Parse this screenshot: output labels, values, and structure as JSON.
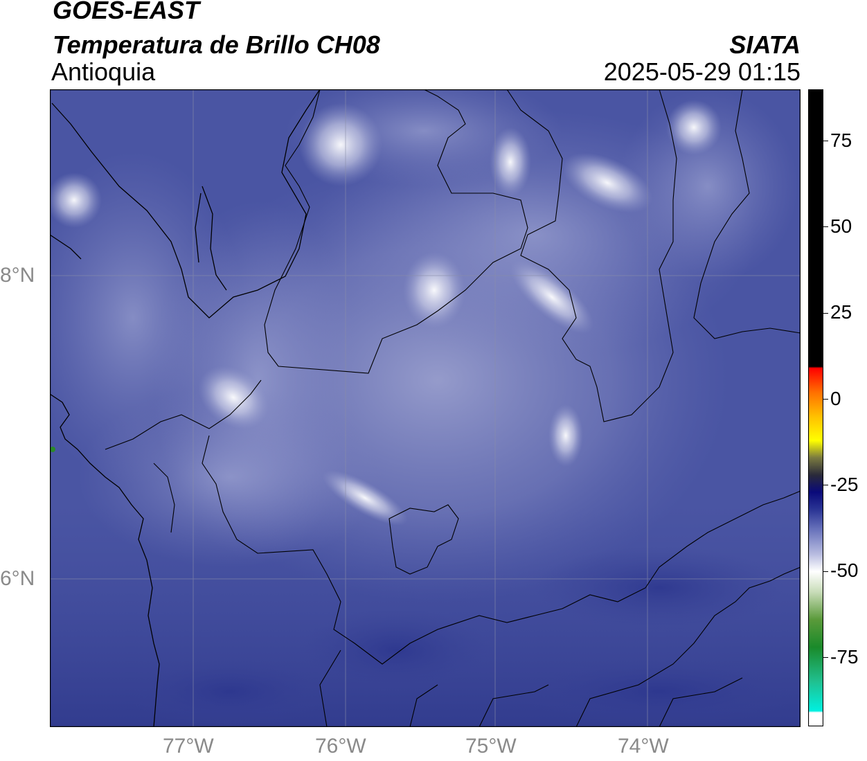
{
  "header": {
    "line1": "GOES-EAST",
    "line2": "Temperatura de Brillo CH08",
    "region": "Antioquia",
    "agency": "SIATA",
    "datetime": "2025-05-29 01:15"
  },
  "map": {
    "lon_range": [
      -77.95,
      -73.0
    ],
    "lat_range": [
      5.05,
      9.25
    ],
    "lon_ticks": [
      {
        "value": -77,
        "label": "77°W"
      },
      {
        "value": -76,
        "label": "76°W"
      },
      {
        "value": -75,
        "label": "75°W"
      },
      {
        "value": -74,
        "label": "74°W"
      }
    ],
    "lat_ticks": [
      {
        "value": 8,
        "label": "8°N"
      },
      {
        "value": 6,
        "label": "6°N"
      }
    ],
    "gridlines": true,
    "background_color": "#4a5aa6",
    "variable": "Brightness temperature (°C), GOES-16 ABI channel 8"
  },
  "colorbar": {
    "range": [
      -95,
      90
    ],
    "ticks": [
      {
        "value": 75,
        "label": "75"
      },
      {
        "value": 50,
        "label": "50"
      },
      {
        "value": 25,
        "label": "25"
      },
      {
        "value": 0,
        "label": "0"
      },
      {
        "value": -25,
        "label": "-25"
      },
      {
        "value": -50,
        "label": "-50"
      },
      {
        "value": -75,
        "label": "-75"
      }
    ],
    "stops": [
      {
        "value": -95,
        "color": "#ffffff"
      },
      {
        "value": -91,
        "color": "#ffffff"
      },
      {
        "value": -90.5,
        "color": "#00f0e0"
      },
      {
        "value": -82,
        "color": "#20c090"
      },
      {
        "value": -72,
        "color": "#1a8a2a"
      },
      {
        "value": -64,
        "color": "#5a9a3a"
      },
      {
        "value": -56,
        "color": "#c8dcb8"
      },
      {
        "value": -50,
        "color": "#ffffff"
      },
      {
        "value": -45,
        "color": "#b8bce0"
      },
      {
        "value": -38,
        "color": "#6a74bc"
      },
      {
        "value": -32,
        "color": "#2a3494"
      },
      {
        "value": -27,
        "color": "#0a0a7a"
      },
      {
        "value": -22,
        "color": "#2a2a3a"
      },
      {
        "value": -17,
        "color": "#7a7a40"
      },
      {
        "value": -12,
        "color": "#ffff00"
      },
      {
        "value": -5,
        "color": "#ffc000"
      },
      {
        "value": 2,
        "color": "#ff7000"
      },
      {
        "value": 9,
        "color": "#ff0000"
      },
      {
        "value": 9.5,
        "color": "#000000"
      },
      {
        "value": 90,
        "color": "#000000"
      }
    ]
  }
}
